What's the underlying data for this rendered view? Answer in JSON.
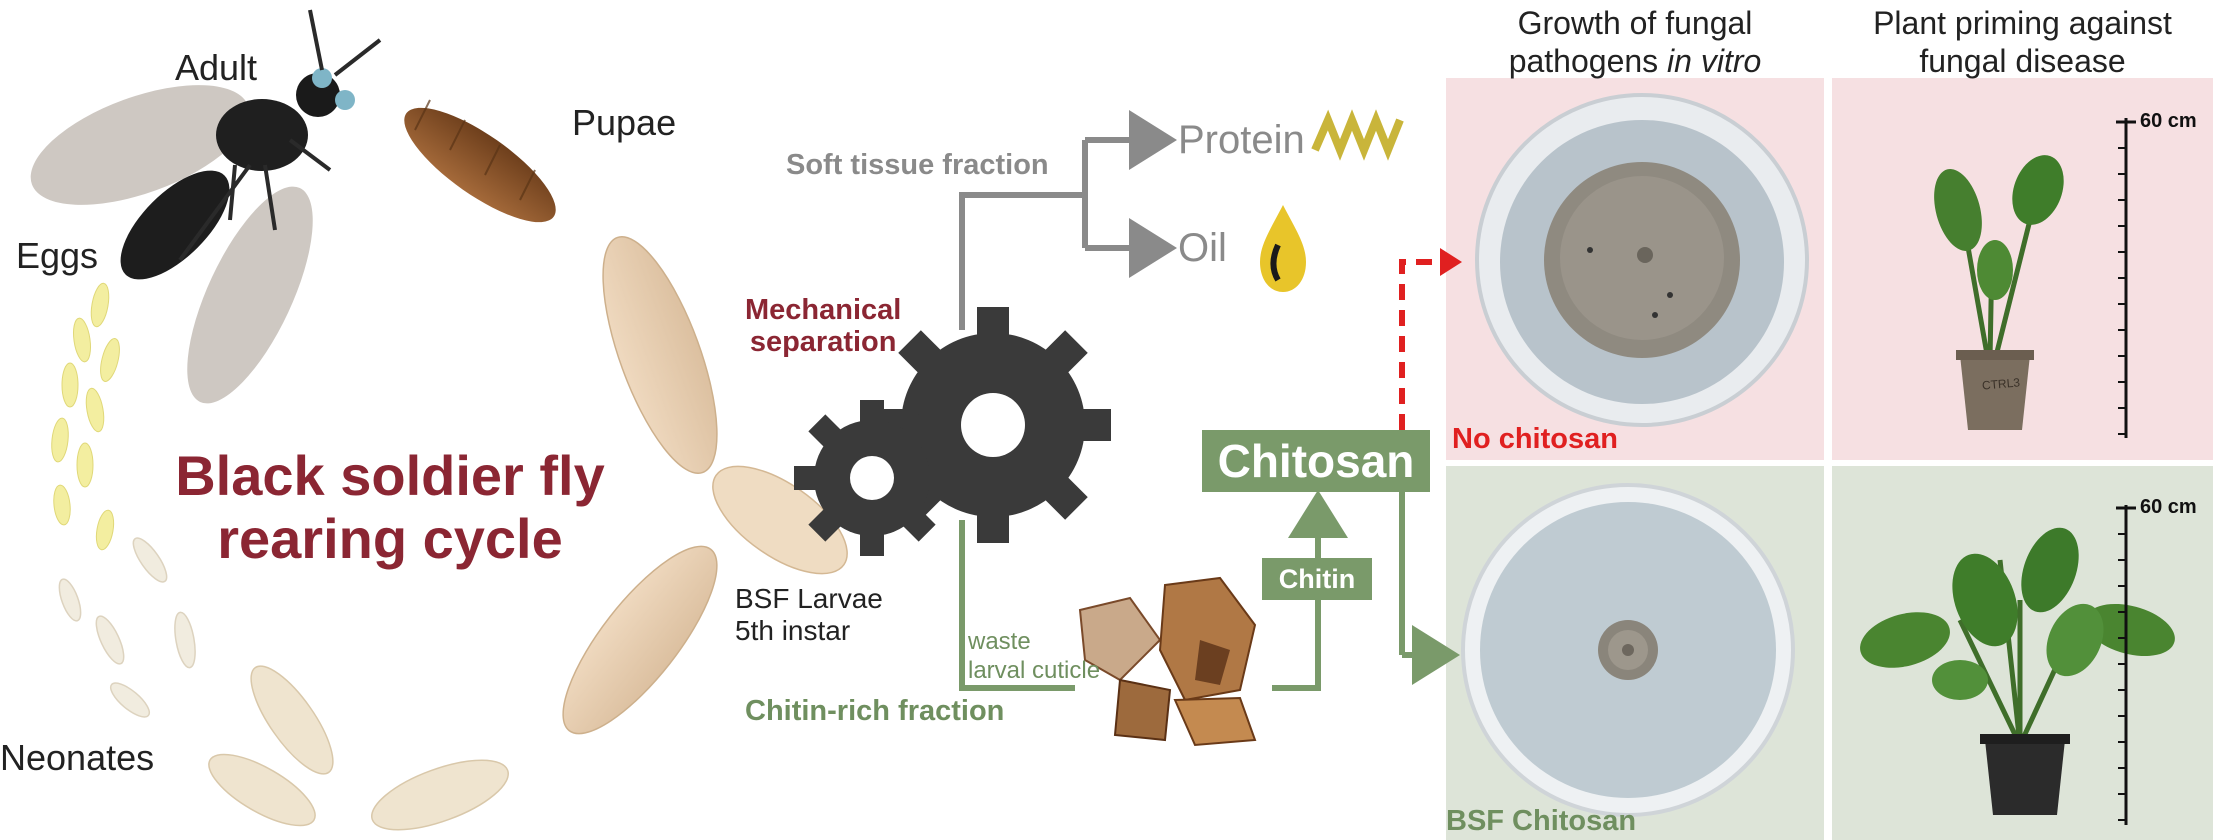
{
  "colors": {
    "title_red": "#8b2633",
    "gray": "#8a8a8a",
    "green": "#6f8f5f",
    "green_box": "#7a9a6a",
    "alert_red": "#e02020",
    "panel_pink": "#f6e0e2",
    "panel_green": "#dde4d8",
    "gear": "#3a3a3a"
  },
  "cycle": {
    "title_line1": "Black soldier fly",
    "title_line2": "rearing cycle",
    "stages": {
      "adult": "Adult",
      "pupae": "Pupae",
      "eggs": "Eggs",
      "neonates": "Neonates"
    },
    "larvae_line1": "BSF Larvae",
    "larvae_line2": "5th instar"
  },
  "process": {
    "mechanical_line1": "Mechanical",
    "mechanical_line2": "separation",
    "soft_tissue": "Soft tissue fraction",
    "protein": "Protein",
    "oil": "Oil",
    "chitin_rich": "Chitin-rich fraction",
    "waste_line1": "waste",
    "waste_line2": "larval cuticle",
    "chitin": "Chitin",
    "chitosan": "Chitosan"
  },
  "results": {
    "col1_line1": "Growth of fungal",
    "col1_line2a": "pathogens ",
    "col1_line2b": "in vitro",
    "col2_line1": "Plant priming against",
    "col2_line2": "fungal disease",
    "no_chitosan": "No chitosan",
    "bsf_chitosan": "BSF Chitosan",
    "scale_label": "60 cm",
    "pot_label": "CTRL3"
  }
}
